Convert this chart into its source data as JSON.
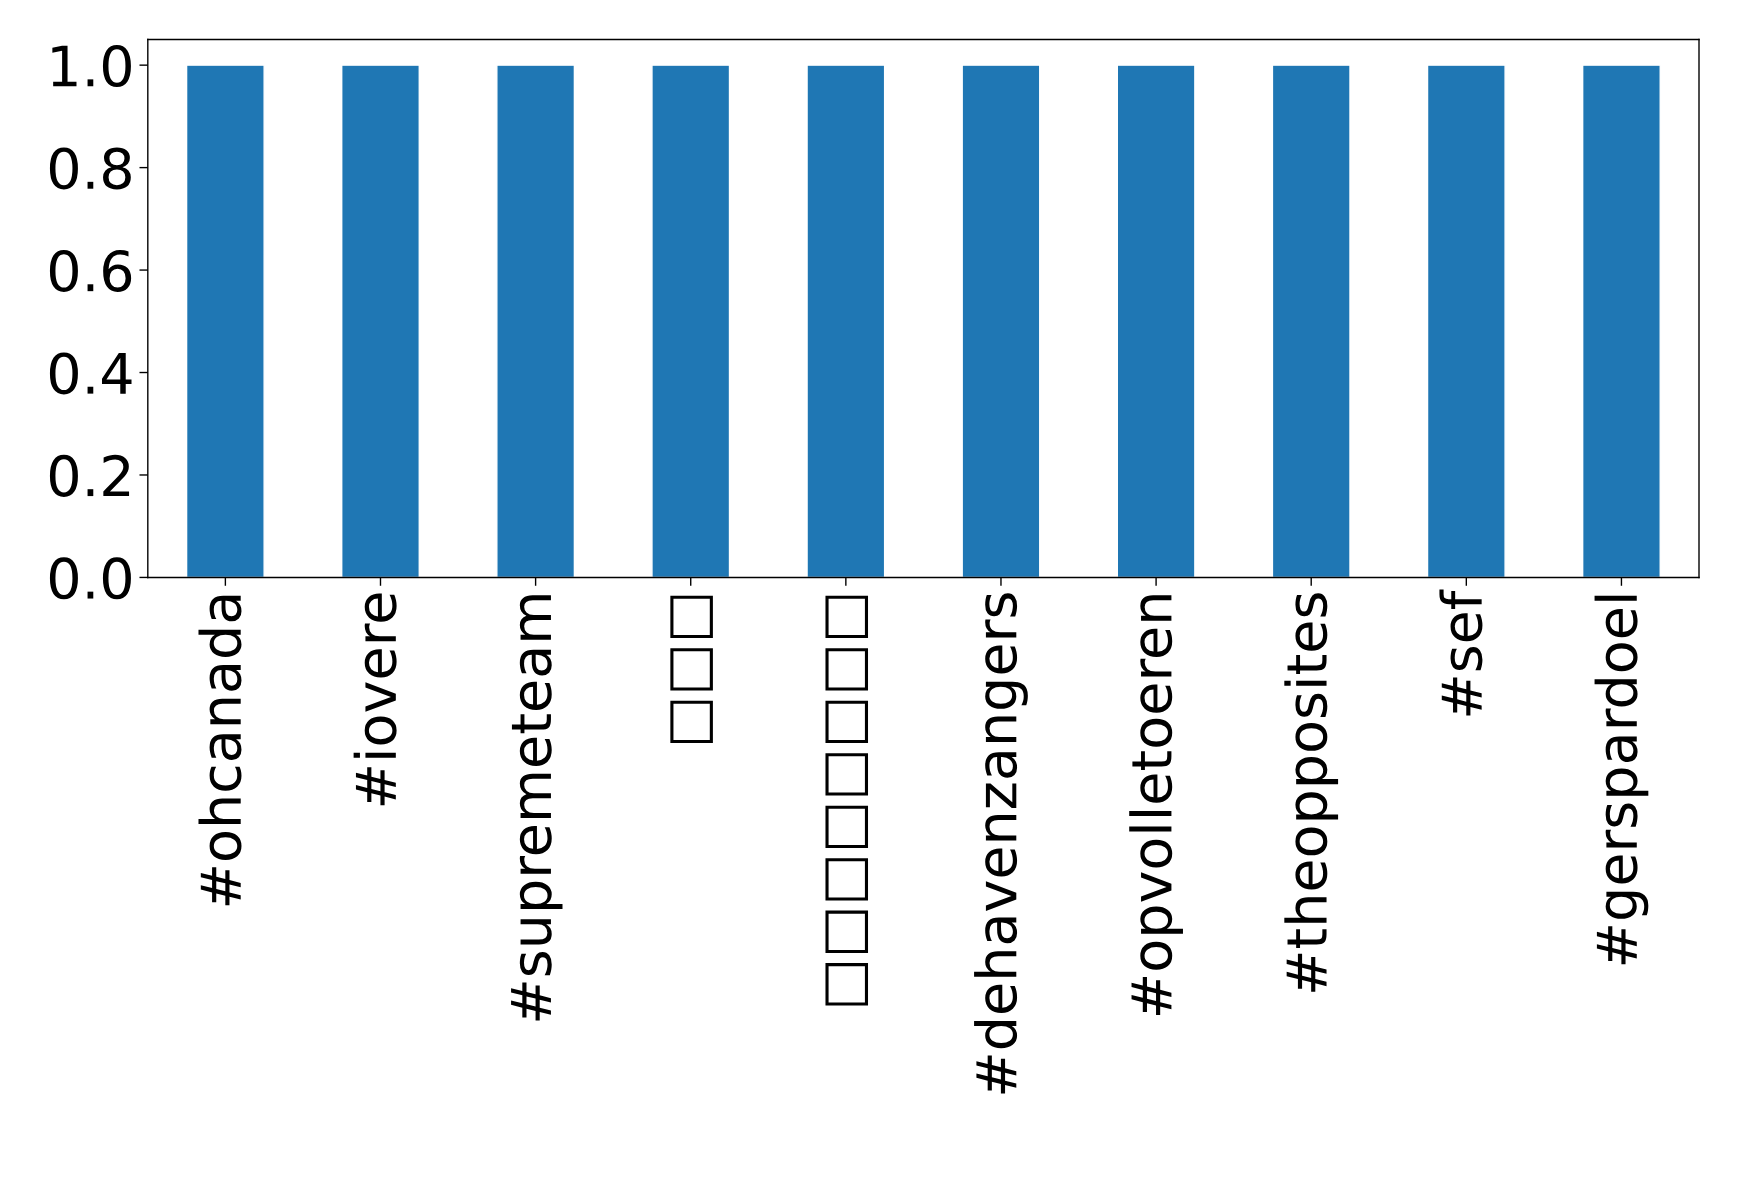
{
  "chart_data": {
    "type": "bar",
    "categories": [
      "#ohcanada",
      "#iovere",
      "#supremeteam",
      "□□□",
      "□□□□□□□□",
      "#dehavenzangers",
      "#opvolletoeren",
      "#theopposites",
      "#sef",
      "#gerspardoel"
    ],
    "values": [
      1,
      1,
      1,
      1,
      1,
      1,
      1,
      1,
      1,
      1
    ],
    "color": "#1f77b4",
    "ylim": [
      0,
      1.05
    ],
    "yticks": [
      {
        "value": 0,
        "label": "0.0"
      },
      0.2,
      0.4,
      0.6,
      0.8,
      {
        "value": 1,
        "label": "1.0"
      }
    ],
    "grid": false,
    "legend": false
  }
}
